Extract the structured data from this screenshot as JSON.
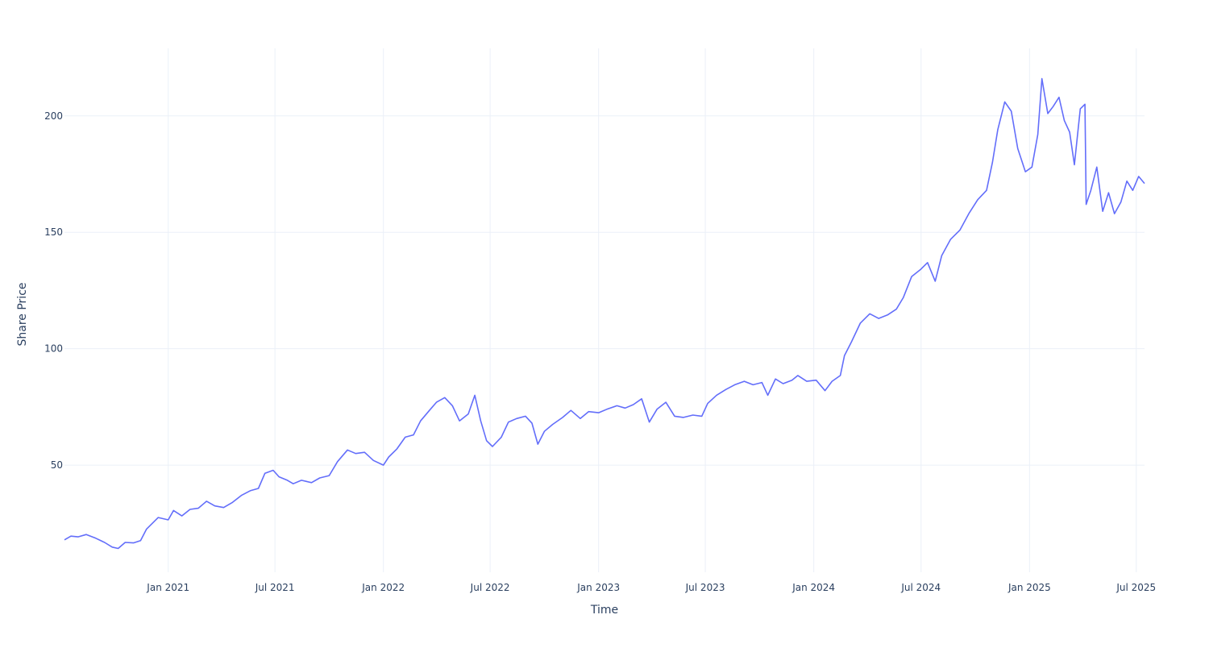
{
  "chart_data": {
    "type": "line",
    "xlabel": "Time",
    "ylabel": "Share Price",
    "x_range": [
      "2020-07-09",
      "2025-07-15"
    ],
    "ylim": [
      4,
      229
    ],
    "grid": true,
    "line_color": "#636efa",
    "grid_color": "#ebf0f8",
    "text_color": "#2a3f5f",
    "x_ticks": [
      {
        "date": "2021-01-01",
        "label": "Jan 2021"
      },
      {
        "date": "2021-07-01",
        "label": "Jul 2021"
      },
      {
        "date": "2022-01-01",
        "label": "Jan 2022"
      },
      {
        "date": "2022-07-01",
        "label": "Jul 2022"
      },
      {
        "date": "2023-01-01",
        "label": "Jan 2023"
      },
      {
        "date": "2023-07-01",
        "label": "Jul 2023"
      },
      {
        "date": "2024-01-01",
        "label": "Jan 2024"
      },
      {
        "date": "2024-07-01",
        "label": "Jul 2024"
      },
      {
        "date": "2025-01-01",
        "label": "Jan 2025"
      },
      {
        "date": "2025-07-01",
        "label": "Jul 2025"
      }
    ],
    "y_ticks": [
      {
        "value": 50,
        "label": "50"
      },
      {
        "value": 100,
        "label": "100"
      },
      {
        "value": 150,
        "label": "150"
      },
      {
        "value": 200,
        "label": "200"
      }
    ],
    "series": [
      {
        "points": [
          [
            "2020-07-09",
            17.9
          ],
          [
            "2020-07-20",
            19.5
          ],
          [
            "2020-08-01",
            19.2
          ],
          [
            "2020-08-15",
            20.2
          ],
          [
            "2020-08-31",
            18.6
          ],
          [
            "2020-09-15",
            16.8
          ],
          [
            "2020-09-28",
            14.8
          ],
          [
            "2020-10-08",
            14.2
          ],
          [
            "2020-10-20",
            16.8
          ],
          [
            "2020-11-03",
            16.6
          ],
          [
            "2020-11-15",
            17.6
          ],
          [
            "2020-11-25",
            22.5
          ],
          [
            "2020-12-05",
            25.0
          ],
          [
            "2020-12-15",
            27.5
          ],
          [
            "2021-01-01",
            26.5
          ],
          [
            "2021-01-10",
            30.5
          ],
          [
            "2021-01-24",
            28.2
          ],
          [
            "2021-02-07",
            31.0
          ],
          [
            "2021-02-21",
            31.5
          ],
          [
            "2021-03-07",
            34.5
          ],
          [
            "2021-03-21",
            32.5
          ],
          [
            "2021-04-05",
            31.8
          ],
          [
            "2021-04-20",
            34.0
          ],
          [
            "2021-05-05",
            37.0
          ],
          [
            "2021-05-20",
            39.0
          ],
          [
            "2021-06-03",
            40.0
          ],
          [
            "2021-06-14",
            46.5
          ],
          [
            "2021-06-28",
            47.8
          ],
          [
            "2021-07-08",
            45.0
          ],
          [
            "2021-07-22",
            43.5
          ],
          [
            "2021-08-01",
            42.0
          ],
          [
            "2021-08-15",
            43.5
          ],
          [
            "2021-09-01",
            42.5
          ],
          [
            "2021-09-15",
            44.5
          ],
          [
            "2021-10-01",
            45.5
          ],
          [
            "2021-10-15",
            51.5
          ],
          [
            "2021-11-01",
            56.5
          ],
          [
            "2021-11-15",
            55.0
          ],
          [
            "2021-11-30",
            55.5
          ],
          [
            "2021-12-15",
            52.0
          ],
          [
            "2022-01-01",
            50.0
          ],
          [
            "2022-01-10",
            53.5
          ],
          [
            "2022-01-24",
            57.0
          ],
          [
            "2022-02-07",
            62.0
          ],
          [
            "2022-02-21",
            63.0
          ],
          [
            "2022-03-05",
            69.0
          ],
          [
            "2022-03-20",
            73.5
          ],
          [
            "2022-04-01",
            77.0
          ],
          [
            "2022-04-15",
            79.0
          ],
          [
            "2022-04-28",
            75.5
          ],
          [
            "2022-05-10",
            69.0
          ],
          [
            "2022-05-25",
            72.0
          ],
          [
            "2022-06-05",
            80.0
          ],
          [
            "2022-06-15",
            69.0
          ],
          [
            "2022-06-25",
            60.5
          ],
          [
            "2022-07-05",
            58.0
          ],
          [
            "2022-07-20",
            62.0
          ],
          [
            "2022-08-01",
            68.5
          ],
          [
            "2022-08-15",
            70.0
          ],
          [
            "2022-08-30",
            71.0
          ],
          [
            "2022-09-10",
            68.0
          ],
          [
            "2022-09-20",
            59.0
          ],
          [
            "2022-10-01",
            64.5
          ],
          [
            "2022-10-15",
            67.5
          ],
          [
            "2022-11-01",
            70.5
          ],
          [
            "2022-11-15",
            73.5
          ],
          [
            "2022-12-01",
            70.0
          ],
          [
            "2022-12-15",
            73.0
          ],
          [
            "2023-01-01",
            72.5
          ],
          [
            "2023-01-15",
            74.0
          ],
          [
            "2023-02-01",
            75.5
          ],
          [
            "2023-02-15",
            74.5
          ],
          [
            "2023-03-01",
            76.0
          ],
          [
            "2023-03-15",
            78.5
          ],
          [
            "2023-03-28",
            68.5
          ],
          [
            "2023-04-10",
            74.0
          ],
          [
            "2023-04-25",
            77.0
          ],
          [
            "2023-05-10",
            71.0
          ],
          [
            "2023-05-25",
            70.5
          ],
          [
            "2023-06-10",
            71.5
          ],
          [
            "2023-06-25",
            71.0
          ],
          [
            "2023-07-05",
            76.5
          ],
          [
            "2023-07-20",
            80.0
          ],
          [
            "2023-08-05",
            82.5
          ],
          [
            "2023-08-20",
            84.5
          ],
          [
            "2023-09-05",
            86.0
          ],
          [
            "2023-09-20",
            84.5
          ],
          [
            "2023-10-05",
            85.5
          ],
          [
            "2023-10-15",
            80.0
          ],
          [
            "2023-10-28",
            87.0
          ],
          [
            "2023-11-10",
            85.0
          ],
          [
            "2023-11-25",
            86.5
          ],
          [
            "2023-12-05",
            88.5
          ],
          [
            "2023-12-20",
            86.0
          ],
          [
            "2024-01-05",
            86.5
          ],
          [
            "2024-01-20",
            82.0
          ],
          [
            "2024-02-01",
            86.0
          ],
          [
            "2024-02-15",
            88.5
          ],
          [
            "2024-02-22",
            97.0
          ],
          [
            "2024-03-05",
            103.0
          ],
          [
            "2024-03-20",
            111.0
          ],
          [
            "2024-04-05",
            115.0
          ],
          [
            "2024-04-20",
            113.0
          ],
          [
            "2024-05-05",
            114.5
          ],
          [
            "2024-05-20",
            117.0
          ],
          [
            "2024-06-01",
            122.0
          ],
          [
            "2024-06-15",
            131.0
          ],
          [
            "2024-06-30",
            134.0
          ],
          [
            "2024-07-12",
            137.0
          ],
          [
            "2024-07-25",
            129.0
          ],
          [
            "2024-08-05",
            140.0
          ],
          [
            "2024-08-20",
            147.0
          ],
          [
            "2024-09-05",
            151.0
          ],
          [
            "2024-09-20",
            158.0
          ],
          [
            "2024-10-05",
            164.0
          ],
          [
            "2024-10-20",
            168.0
          ],
          [
            "2024-10-30",
            180.0
          ],
          [
            "2024-11-08",
            194.0
          ],
          [
            "2024-11-20",
            206.0
          ],
          [
            "2024-12-01",
            202.0
          ],
          [
            "2024-12-12",
            186.0
          ],
          [
            "2024-12-25",
            176.0
          ],
          [
            "2025-01-05",
            178.0
          ],
          [
            "2025-01-15",
            192.0
          ],
          [
            "2025-01-22",
            216.0
          ],
          [
            "2025-02-01",
            201.0
          ],
          [
            "2025-02-10",
            204.0
          ],
          [
            "2025-02-20",
            208.0
          ],
          [
            "2025-03-01",
            198.0
          ],
          [
            "2025-03-10",
            193.0
          ],
          [
            "2025-03-18",
            179.0
          ],
          [
            "2025-03-28",
            203.0
          ],
          [
            "2025-04-05",
            205.0
          ],
          [
            "2025-04-07",
            162.0
          ],
          [
            "2025-04-15",
            168.0
          ],
          [
            "2025-04-25",
            178.0
          ],
          [
            "2025-05-05",
            159.0
          ],
          [
            "2025-05-15",
            167.0
          ],
          [
            "2025-05-25",
            158.0
          ],
          [
            "2025-06-05",
            163.0
          ],
          [
            "2025-06-15",
            172.0
          ],
          [
            "2025-06-25",
            168.0
          ],
          [
            "2025-07-05",
            174.0
          ],
          [
            "2025-07-15",
            171.0
          ]
        ]
      }
    ]
  }
}
